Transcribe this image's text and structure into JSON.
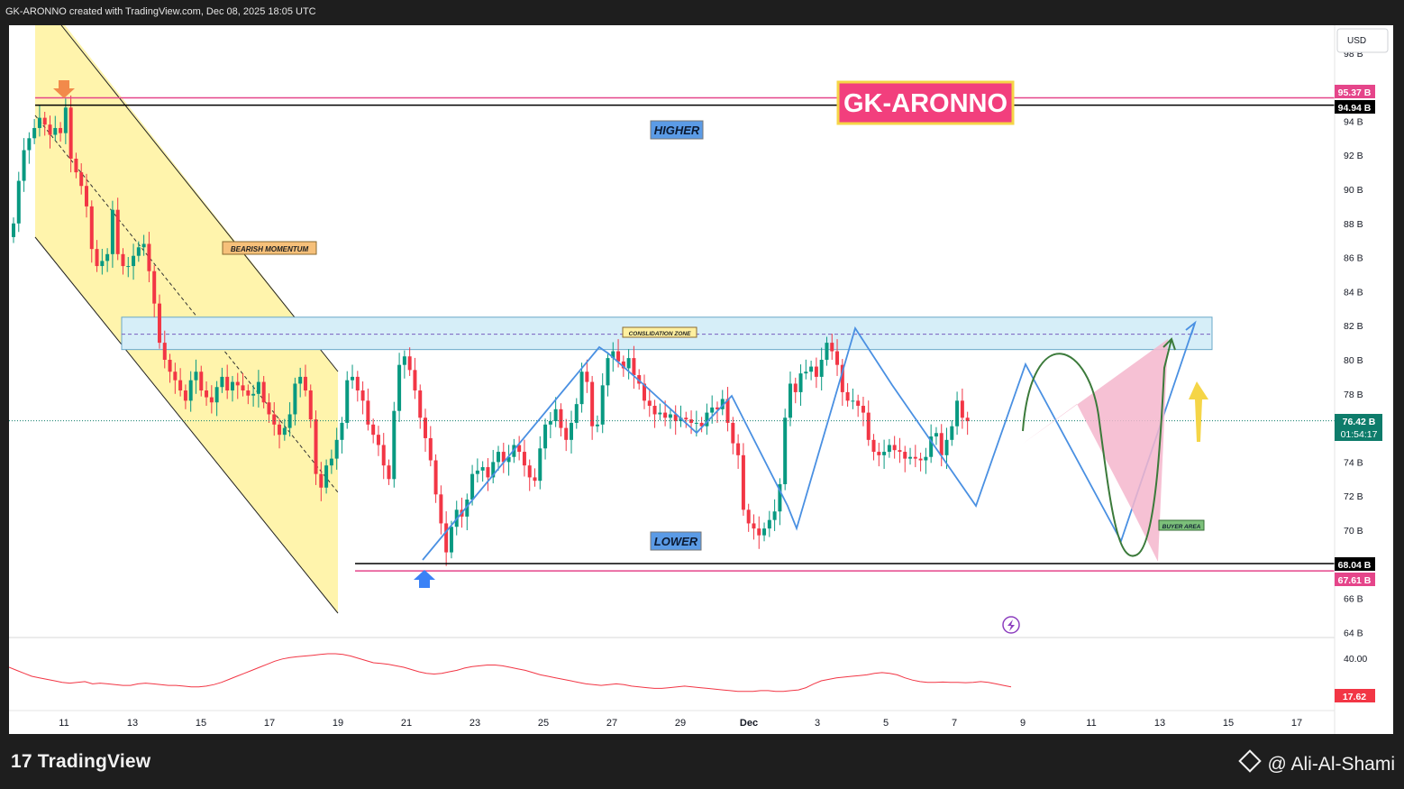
{
  "header": {
    "credit": "GK-ARONNO created with TradingView.com, Dec 08, 2025 18:05 UTC"
  },
  "footer": {
    "brand": "TradingView",
    "author": "@ Ali-Al-Shami"
  },
  "colors": {
    "up": "#089981",
    "down": "#f23645",
    "zigzag": "#4a90e2",
    "channel_fill": "#fff3a8",
    "zone_fill": "#d6eef8",
    "pink": "#f4b6cc",
    "magenta_line": "#e5458a",
    "oscillator": "#f23645",
    "brand_fill": "#f23f7d",
    "brand_border": "#f5d547"
  },
  "chart_data": {
    "type": "candlestick",
    "title": "GK-ARONNO",
    "currency": "USD",
    "price_unit": "B",
    "ylim": [
      63.5,
      99
    ],
    "y_ticks": [
      "98 B",
      "94 B",
      "92 B",
      "90 B",
      "88 B",
      "86 B",
      "84 B",
      "82 B",
      "80 B",
      "78 B",
      "74 B",
      "72 B",
      "70 B",
      "66 B",
      "64 B"
    ],
    "x_ticks": [
      "11",
      "13",
      "15",
      "17",
      "19",
      "21",
      "23",
      "25",
      "27",
      "29",
      "Dec",
      "3",
      "5",
      "7",
      "9",
      "11",
      "13",
      "15",
      "17"
    ],
    "price_labels": {
      "top_pink": "95.37 B",
      "top_black": "94.94 B",
      "current": "76.42 B",
      "countdown": "01:54:17",
      "bottom_black": "68.04 B",
      "bottom_pink": "67.61 B"
    },
    "levels": {
      "top_pink": 95.37,
      "top_black": 94.94,
      "current": 76.42,
      "bottom_black": 68.04,
      "bottom_pink": 67.61
    },
    "zone": {
      "label": "CONSLIDATION ZONE",
      "top": 82.5,
      "bottom": 80.6,
      "mid": 81.5
    },
    "annotations": {
      "higher": "HIGHER",
      "lower": "LOWER",
      "bearish": "BEARISH MOMENTUM",
      "buyer": "BUYER AREA"
    },
    "closes": [
      88,
      90.5,
      92.3,
      93.0,
      93.6,
      94.2,
      93.8,
      93.2,
      93.6,
      93.3,
      94.8,
      91.8,
      91.0,
      90.2,
      89.0,
      86.5,
      85.5,
      85.8,
      86.2,
      88.8,
      86.2,
      85.5,
      85.5,
      86.1,
      86.6,
      86.8,
      85.2,
      83.3,
      81.0,
      80.0,
      79.3,
      78.8,
      78.2,
      77.6,
      78.8,
      79.3,
      78.2,
      77.8,
      77.5,
      78.4,
      79.0,
      78.2,
      78.7,
      78.5,
      78.2,
      77.9,
      78.0,
      78.7,
      77.5,
      76.8,
      76.2,
      75.6,
      76.0,
      76.8,
      78.6,
      79.0,
      78.2,
      76.5,
      73.3,
      72.5,
      73.8,
      74.2,
      75.3,
      76.3,
      78.8,
      79.0,
      78.2,
      77.6,
      76.2,
      75.6,
      75.0,
      73.8,
      73.0,
      77.0,
      79.7,
      80.2,
      79.4,
      78.2,
      76.6,
      75.4,
      74.1,
      72.1,
      70.4,
      68.7,
      70.2,
      71.2,
      70.8,
      71.8,
      73.3,
      73.5,
      73.7,
      73.1,
      74.0,
      74.6,
      74.0,
      74.3,
      75.0,
      74.6,
      73.8,
      73.1,
      72.9,
      74.8,
      76.2,
      76.4,
      77.1,
      76.0,
      75.3,
      76.3,
      77.4,
      79.3,
      78.7,
      76.1,
      76.2,
      78.5,
      80.1,
      80.5,
      79.9,
      79.5,
      80.1,
      79.1,
      78.6,
      77.6,
      77.3,
      76.8,
      76.9,
      76.6,
      76.8,
      76.4,
      76.6,
      76.5,
      76.3,
      76.3,
      76.1,
      76.9,
      77.2,
      77.1,
      77.7,
      76.3,
      75.1,
      74.4,
      71.2,
      70.4,
      70.1,
      69.7,
      70.1,
      70.6,
      71.1,
      72.7,
      76.6,
      78.6,
      78.1,
      79.2,
      79.3,
      79.6,
      79.0,
      80.0,
      81.0,
      80.5,
      79.7,
      78.1,
      77.6,
      77.6,
      77.3,
      76.9,
      75.3,
      74.6,
      74.4,
      74.6,
      75.0,
      74.7,
      74.6,
      74.2,
      74.3,
      74.2,
      74.1,
      74.3,
      75.5,
      75.7,
      74.4,
      75.3,
      76.1,
      77.6,
      76.6,
      76.4
    ],
    "oscillator": {
      "labels": [
        "40.00",
        "17.62"
      ],
      "ylim": [
        10,
        45
      ],
      "values": [
        34,
        32,
        30,
        28,
        27,
        26,
        25,
        24,
        23.5,
        24,
        24.5,
        23,
        23.5,
        23,
        22.5,
        22,
        22,
        23,
        23.5,
        23,
        22.5,
        22,
        22,
        21.5,
        21,
        21,
        21.5,
        22.5,
        24,
        26,
        28,
        30,
        32,
        34,
        36,
        38,
        39.5,
        40.5,
        41,
        41.5,
        42,
        42.5,
        43,
        43,
        42.5,
        41.5,
        40,
        38.5,
        37,
        36.5,
        36,
        35,
        34,
        32.5,
        31,
        30,
        29.5,
        30,
        31,
        32,
        33.5,
        34.5,
        35,
        35.5,
        35.5,
        35,
        34,
        33,
        32,
        30.5,
        29,
        28,
        27,
        26,
        25,
        24,
        23,
        22.5,
        22,
        22.5,
        23,
        22.5,
        21.5,
        21,
        20.5,
        20,
        20,
        20.5,
        21,
        21.5,
        21,
        20.5,
        20,
        19.5,
        19,
        18.5,
        18,
        18,
        18,
        18.5,
        18.5,
        18,
        18,
        18.5,
        19,
        20.5,
        23,
        25,
        26,
        27,
        27.5,
        28,
        28.5,
        29,
        30,
        30.5,
        30,
        29,
        27,
        25.5,
        24.5,
        24,
        24,
        24.2,
        24,
        24,
        23.8,
        24,
        24.5,
        24,
        23,
        22,
        21
      ]
    }
  }
}
